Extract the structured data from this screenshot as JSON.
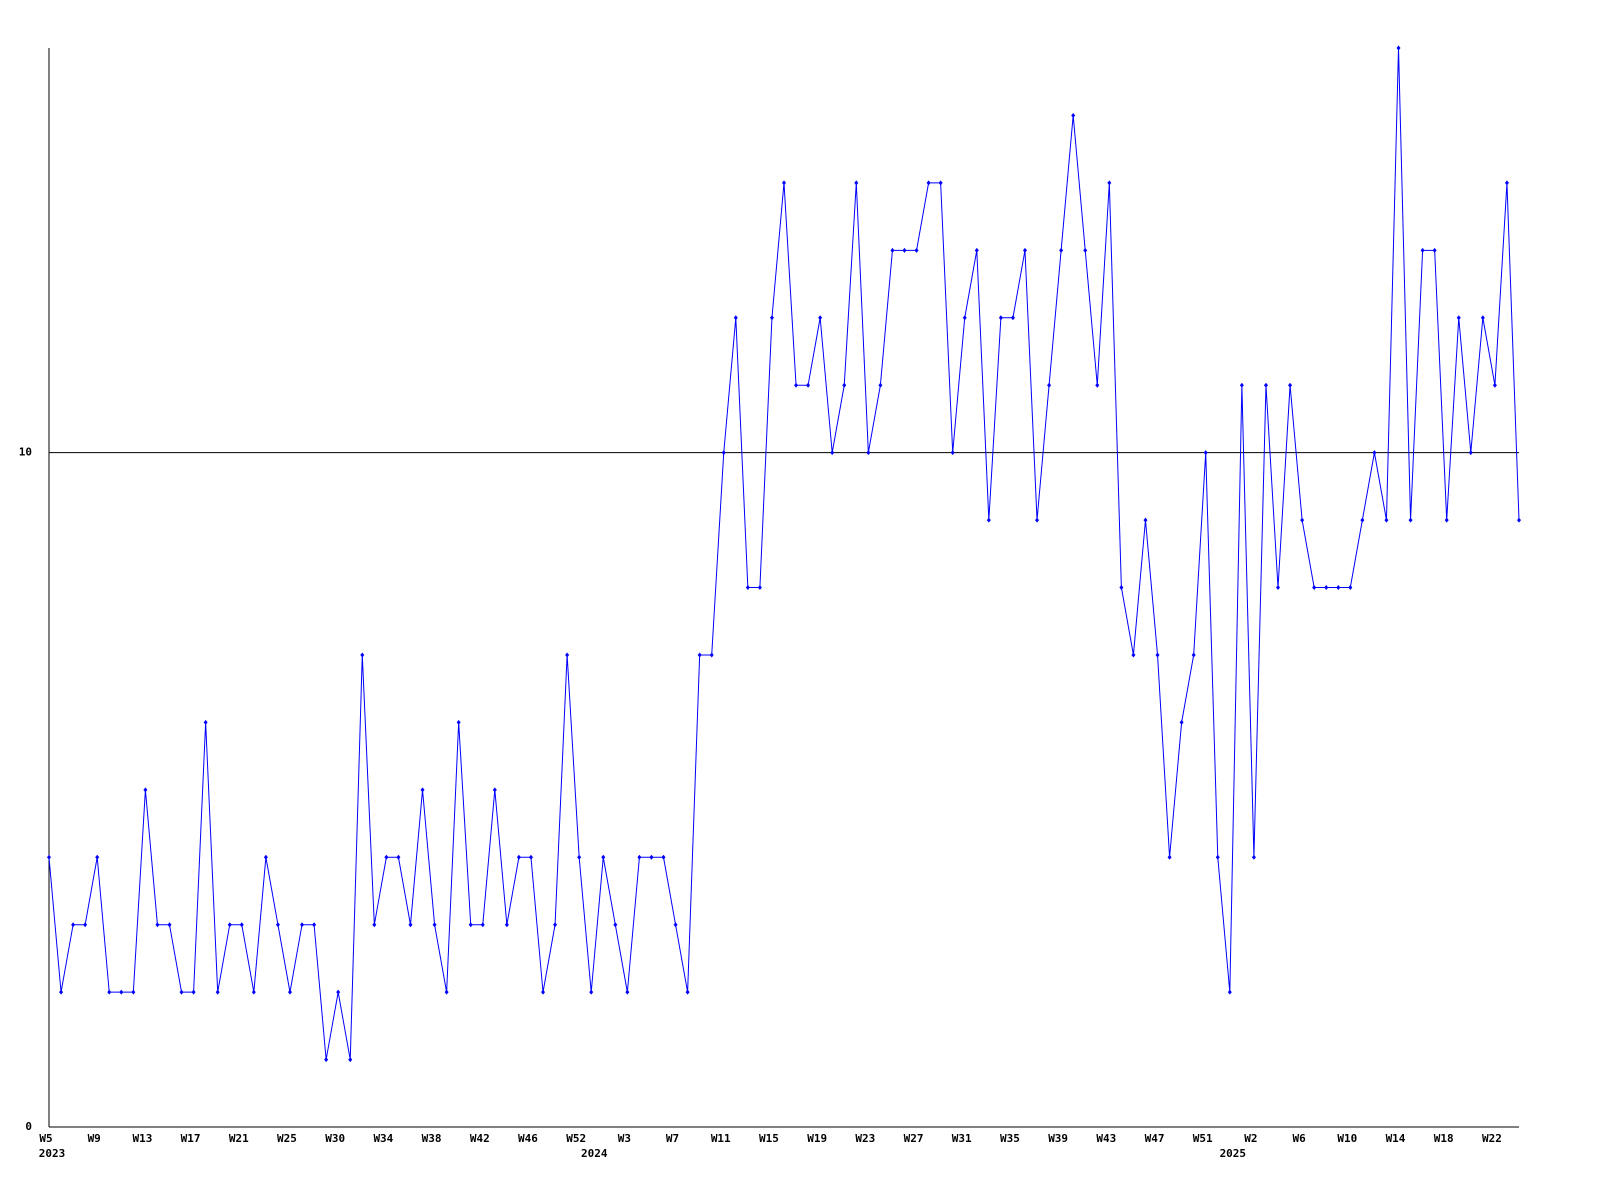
{
  "chart_data": {
    "type": "line",
    "categories": [
      "W5",
      null,
      null,
      null,
      "W9",
      null,
      null,
      null,
      "W13",
      null,
      null,
      null,
      "W17",
      null,
      null,
      null,
      "W21",
      null,
      null,
      null,
      "W25",
      null,
      null,
      null,
      "W30",
      null,
      null,
      null,
      "W34",
      null,
      null,
      null,
      "W38",
      null,
      null,
      null,
      "W42",
      null,
      null,
      null,
      "W46",
      null,
      null,
      null,
      "W52",
      null,
      null,
      null,
      "W3",
      null,
      null,
      null,
      "W7",
      null,
      null,
      null,
      "W11",
      null,
      null,
      null,
      "W15",
      null,
      null,
      null,
      "W19",
      null,
      null,
      null,
      "W23",
      null,
      null,
      null,
      "W27",
      null,
      null,
      null,
      "W31",
      null,
      null,
      null,
      "W35",
      null,
      null,
      null,
      "W39",
      null,
      null,
      null,
      "W43",
      null,
      null,
      null,
      "W47",
      null,
      null,
      null,
      "W51",
      null,
      null,
      null,
      "W2",
      null,
      null,
      null,
      "W6",
      null,
      null,
      null,
      "W10",
      null,
      null,
      null,
      "W14",
      null,
      null,
      null,
      "W18",
      null,
      null,
      null,
      "W22",
      null,
      null
    ],
    "x_group_labels": [
      "2023",
      null,
      null,
      null,
      null,
      null,
      null,
      null,
      null,
      null,
      null,
      null,
      null,
      null,
      null,
      null,
      null,
      null,
      null,
      null,
      null,
      null,
      null,
      null,
      null,
      null,
      null,
      null,
      null,
      null,
      null,
      null,
      null,
      null,
      null,
      null,
      null,
      null,
      null,
      null,
      null,
      null,
      null,
      null,
      null,
      "2024",
      null,
      null,
      null,
      null,
      null,
      null,
      null,
      null,
      null,
      null,
      null,
      null,
      null,
      null,
      null,
      null,
      null,
      null,
      null,
      null,
      null,
      null,
      null,
      null,
      null,
      null,
      null,
      null,
      null,
      null,
      null,
      null,
      null,
      null,
      null,
      null,
      null,
      null,
      null,
      null,
      null,
      null,
      null,
      null,
      null,
      null,
      null,
      null,
      null,
      null,
      null,
      null,
      "2025",
      null,
      null,
      null,
      null,
      null,
      null,
      null,
      null,
      null,
      null,
      null,
      null,
      null,
      null,
      null,
      null,
      null,
      null,
      null,
      null,
      null,
      null,
      null,
      null
    ],
    "values": [
      4,
      2,
      3,
      3,
      4,
      2,
      2,
      2,
      5,
      3,
      3,
      2,
      2,
      6,
      2,
      3,
      3,
      2,
      4,
      3,
      2,
      3,
      3,
      1,
      2,
      1,
      7,
      3,
      4,
      4,
      3,
      5,
      3,
      2,
      6,
      3,
      3,
      5,
      3,
      4,
      4,
      2,
      3,
      7,
      4,
      2,
      4,
      3,
      2,
      4,
      4,
      4,
      3,
      2,
      7,
      7,
      10,
      12,
      8,
      8,
      12,
      14,
      11,
      11,
      12,
      10,
      11,
      14,
      10,
      11,
      13,
      13,
      13,
      14,
      14,
      10,
      12,
      13,
      9,
      12,
      12,
      13,
      9,
      11,
      13,
      15,
      13,
      11,
      14,
      8,
      7,
      9,
      7,
      4,
      6,
      7,
      10,
      4,
      2,
      11,
      4,
      11,
      8,
      11,
      9,
      8,
      8,
      8,
      8,
      9,
      10,
      9,
      16,
      9,
      13,
      13,
      9,
      12,
      10,
      12,
      11,
      14,
      9
    ],
    "color": "#0000ff",
    "ylim": [
      0,
      16
    ],
    "yticks": [
      0,
      10
    ],
    "grid": true
  }
}
